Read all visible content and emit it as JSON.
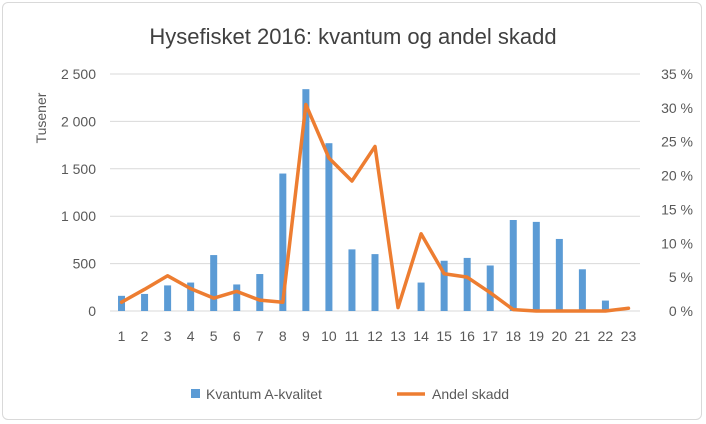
{
  "chart_data": {
    "type": "bar",
    "title": "Hysefisket 2016: kvantum og andel skadd",
    "ylabel": "Tusener",
    "y2label": "",
    "xlabel": "",
    "categories": [
      "1",
      "2",
      "3",
      "4",
      "5",
      "6",
      "7",
      "8",
      "9",
      "10",
      "11",
      "12",
      "13",
      "14",
      "15",
      "16",
      "17",
      "18",
      "19",
      "20",
      "21",
      "22",
      "23"
    ],
    "ylim": [
      0,
      2500
    ],
    "y2lim": [
      0,
      0.35
    ],
    "y_ticks": [
      "0",
      "500",
      "1 000",
      "1 500",
      "2 000",
      "2 500"
    ],
    "y2_ticks": [
      "0 %",
      "5 %",
      "10 %",
      "15 %",
      "20 %",
      "25 %",
      "30 %",
      "35 %"
    ],
    "grid": true,
    "legend_position": "bottom",
    "series": [
      {
        "name": "Kvantum A-kvalitet",
        "kind": "bar",
        "axis": "left",
        "color": "#5b9bd5",
        "values": [
          160,
          180,
          270,
          300,
          590,
          280,
          390,
          1450,
          2340,
          1770,
          650,
          600,
          0,
          300,
          530,
          560,
          480,
          960,
          940,
          760,
          440,
          110,
          0
        ]
      },
      {
        "name": "Andel skadd",
        "kind": "line",
        "axis": "right",
        "color": "#ed7d31",
        "values": [
          0.013,
          0.032,
          0.052,
          0.033,
          0.019,
          0.029,
          0.016,
          0.013,
          0.305,
          0.226,
          0.192,
          0.243,
          0.005,
          0.114,
          0.055,
          0.05,
          0.027,
          0.002,
          0.0,
          0.0,
          0.0,
          0.0,
          0.004
        ]
      }
    ]
  }
}
